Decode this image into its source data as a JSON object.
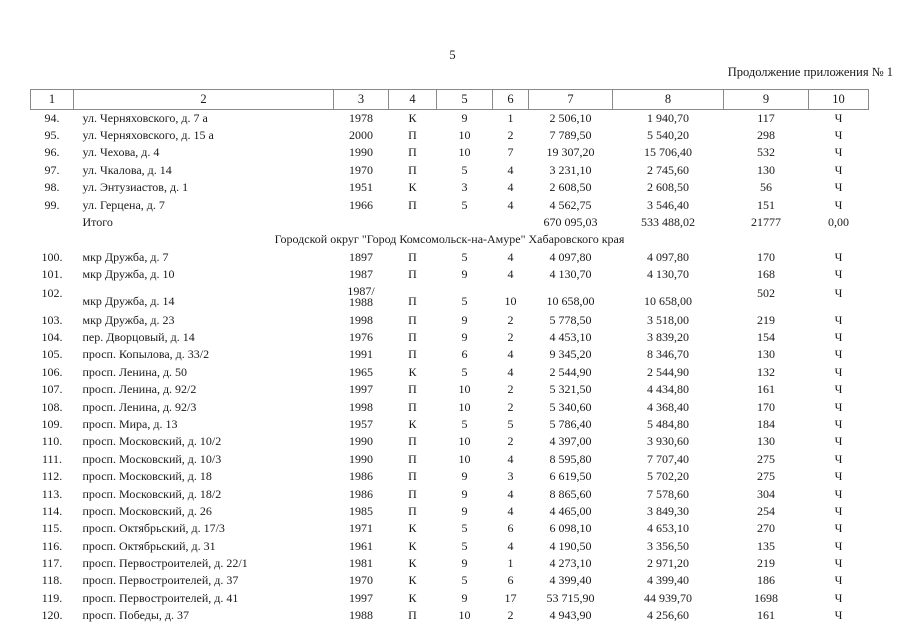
{
  "page": {
    "number": "5",
    "caption": "Продолжение приложения № 1"
  },
  "table": {
    "column_numbers": [
      "1",
      "2",
      "3",
      "4",
      "5",
      "6",
      "7",
      "8",
      "9",
      "10"
    ],
    "rows": [
      {
        "type": "data",
        "cells": [
          "94.",
          "ул. Черняховского, д. 7 а",
          "1978",
          "К",
          "9",
          "1",
          "2 506,10",
          "1 940,70",
          "117",
          "Ч"
        ]
      },
      {
        "type": "data",
        "cells": [
          "95.",
          "ул. Черняховского, д. 15 а",
          "2000",
          "П",
          "10",
          "2",
          "7 789,50",
          "5 540,20",
          "298",
          "Ч"
        ]
      },
      {
        "type": "data",
        "cells": [
          "96.",
          "ул. Чехова, д. 4",
          "1990",
          "П",
          "10",
          "7",
          "19 307,20",
          "15 706,40",
          "532",
          "Ч"
        ]
      },
      {
        "type": "data",
        "cells": [
          "97.",
          "ул. Чкалова, д. 14",
          "1970",
          "П",
          "5",
          "4",
          "3 231,10",
          "2 745,60",
          "130",
          "Ч"
        ]
      },
      {
        "type": "data",
        "cells": [
          "98.",
          "ул. Энтузиастов, д. 1",
          "1951",
          "К",
          "3",
          "4",
          "2 608,50",
          "2 608,50",
          "56",
          "Ч"
        ]
      },
      {
        "type": "data",
        "cells": [
          "99.",
          "ул. Герцена, д. 7",
          "1966",
          "П",
          "5",
          "4",
          "4 562,75",
          "3 546,40",
          "151",
          "Ч"
        ]
      },
      {
        "type": "total",
        "cells": [
          "",
          "Итого",
          "",
          "",
          "",
          "",
          "670 095,03",
          "533 488,02",
          "21777",
          "0,00"
        ]
      },
      {
        "type": "section",
        "label": "Городской округ \"Город Комсомольск-на-Амуре\" Хабаровского края"
      },
      {
        "type": "data",
        "cells": [
          "100.",
          "мкр Дружба, д. 7",
          "1897",
          "П",
          "5",
          "4",
          "4 097,80",
          "4 097,80",
          "170",
          "Ч"
        ]
      },
      {
        "type": "data",
        "cells": [
          "101.",
          "мкр Дружба, д. 10",
          "1987",
          "П",
          "9",
          "4",
          "4 130,70",
          "4 130,70",
          "168",
          "Ч"
        ]
      },
      {
        "type": "data",
        "cells": [
          "102.",
          "мкр Дружба, д. 14",
          "1987/\n1988",
          "П",
          "5",
          "10",
          "10 658,00",
          "10 658,00",
          "502",
          "Ч"
        ]
      },
      {
        "type": "data",
        "cells": [
          "103.",
          "мкр Дружба, д. 23",
          "1998",
          "П",
          "9",
          "2",
          "5 778,50",
          "3 518,00",
          "219",
          "Ч"
        ]
      },
      {
        "type": "data",
        "cells": [
          "104.",
          "пер. Дворцовый, д. 14",
          "1976",
          "П",
          "9",
          "2",
          "4 453,10",
          "3 839,20",
          "154",
          "Ч"
        ]
      },
      {
        "type": "data",
        "cells": [
          "105.",
          "просп. Копылова, д. 33/2",
          "1991",
          "П",
          "6",
          "4",
          "9 345,20",
          "8 346,70",
          "130",
          "Ч"
        ]
      },
      {
        "type": "data",
        "cells": [
          "106.",
          "просп. Ленина, д. 50",
          "1965",
          "К",
          "5",
          "4",
          "2 544,90",
          "2 544,90",
          "132",
          "Ч"
        ]
      },
      {
        "type": "data",
        "cells": [
          "107.",
          "просп. Ленина, д. 92/2",
          "1997",
          "П",
          "10",
          "2",
          "5 321,50",
          "4 434,80",
          "161",
          "Ч"
        ]
      },
      {
        "type": "data",
        "cells": [
          "108.",
          "просп. Ленина, д. 92/3",
          "1998",
          "П",
          "10",
          "2",
          "5 340,60",
          "4 368,40",
          "170",
          "Ч"
        ]
      },
      {
        "type": "data",
        "cells": [
          "109.",
          "просп. Мира, д. 13",
          "1957",
          "К",
          "5",
          "5",
          "5 786,40",
          "5 484,80",
          "184",
          "Ч"
        ]
      },
      {
        "type": "data",
        "cells": [
          "110.",
          "просп. Московский, д. 10/2",
          "1990",
          "П",
          "10",
          "2",
          "4 397,00",
          "3 930,60",
          "130",
          "Ч"
        ]
      },
      {
        "type": "data",
        "cells": [
          "111.",
          "просп. Московский, д. 10/3",
          "1990",
          "П",
          "10",
          "4",
          "8 595,80",
          "7 707,40",
          "275",
          "Ч"
        ]
      },
      {
        "type": "data",
        "cells": [
          "112.",
          "просп. Московский, д. 18",
          "1986",
          "П",
          "9",
          "3",
          "6 619,50",
          "5 702,20",
          "275",
          "Ч"
        ]
      },
      {
        "type": "data",
        "cells": [
          "113.",
          "просп. Московский, д. 18/2",
          "1986",
          "П",
          "9",
          "4",
          "8 865,60",
          "7 578,60",
          "304",
          "Ч"
        ]
      },
      {
        "type": "data",
        "cells": [
          "114.",
          "просп. Московский, д. 26",
          "1985",
          "П",
          "9",
          "4",
          "4 465,00",
          "3 849,30",
          "254",
          "Ч"
        ]
      },
      {
        "type": "data",
        "cells": [
          "115.",
          "просп. Октябрьский, д. 17/3",
          "1971",
          "К",
          "5",
          "6",
          "6 098,10",
          "4 653,10",
          "270",
          "Ч"
        ]
      },
      {
        "type": "data",
        "cells": [
          "116.",
          "просп. Октябрьский, д. 31",
          "1961",
          "К",
          "5",
          "4",
          "4 190,50",
          "3 356,50",
          "135",
          "Ч"
        ]
      },
      {
        "type": "data",
        "cells": [
          "117.",
          "просп. Первостроителей, д. 22/1",
          "1981",
          "К",
          "9",
          "1",
          "4 273,10",
          "2 971,20",
          "219",
          "Ч"
        ]
      },
      {
        "type": "data",
        "cells": [
          "118.",
          "просп. Первостроителей, д. 37",
          "1970",
          "К",
          "5",
          "6",
          "4 399,40",
          "4 399,40",
          "186",
          "Ч"
        ]
      },
      {
        "type": "data",
        "cells": [
          "119.",
          "просп. Первостроителей, д. 41",
          "1997",
          "К",
          "9",
          "17",
          "53 715,90",
          "44 939,70",
          "1698",
          "Ч"
        ]
      },
      {
        "type": "data",
        "cells": [
          "120.",
          "просп. Победы, д. 37",
          "1988",
          "П",
          "10",
          "2",
          "4 943,90",
          "4 256,60",
          "161",
          "Ч"
        ]
      }
    ]
  }
}
